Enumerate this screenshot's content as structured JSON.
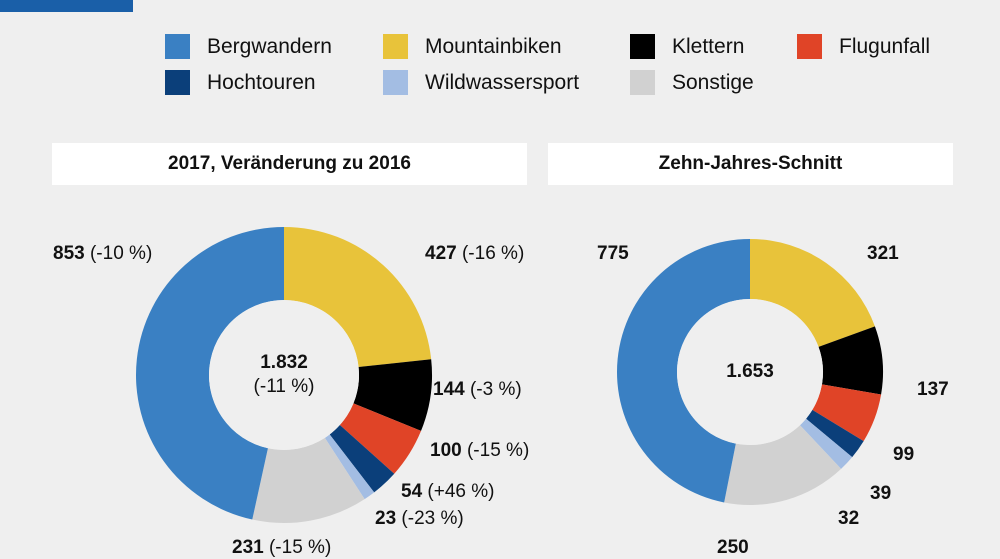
{
  "legend": [
    {
      "name": "Bergwandern",
      "color": "#3a80c3"
    },
    {
      "name": "Mountainbiken",
      "color": "#e8c33a"
    },
    {
      "name": "Klettern",
      "color": "#000000"
    },
    {
      "name": "Flugunfall",
      "color": "#e04427"
    },
    {
      "name": "Hochtouren",
      "color": "#0b3f7a"
    },
    {
      "name": "Wildwassersport",
      "color": "#a3bde3"
    },
    {
      "name": "Sonstige",
      "color": "#d1d1d1"
    }
  ],
  "chart_data": [
    {
      "type": "pie",
      "title": "2017, Veränderung zu 2016",
      "total": "1.832",
      "total_change": "(-11 %)",
      "slices": [
        {
          "category": "Mountainbiken",
          "value": 427,
          "change": "(-16 %)"
        },
        {
          "category": "Klettern",
          "value": 144,
          "change": "(-3 %)"
        },
        {
          "category": "Flugunfall",
          "value": 100,
          "change": "(-15 %)"
        },
        {
          "category": "Hochtouren",
          "value": 54,
          "change": "(+46 %)"
        },
        {
          "category": "Wildwassersport",
          "value": 23,
          "change": "(-23 %)"
        },
        {
          "category": "Sonstige",
          "value": 231,
          "change": "(-15 %)"
        },
        {
          "category": "Bergwandern",
          "value": 853,
          "change": "(-10 %)"
        }
      ]
    },
    {
      "type": "pie",
      "title": "Zehn-Jahres-Schnitt",
      "total": "1.653",
      "slices": [
        {
          "category": "Mountainbiken",
          "value": 321
        },
        {
          "category": "Klettern",
          "value": 137
        },
        {
          "category": "Flugunfall",
          "value": 99
        },
        {
          "category": "Hochtouren",
          "value": 39
        },
        {
          "category": "Wildwassersport",
          "value": 32
        },
        {
          "category": "Sonstige",
          "value": 250
        },
        {
          "category": "Bergwandern",
          "value": 775
        }
      ]
    }
  ]
}
